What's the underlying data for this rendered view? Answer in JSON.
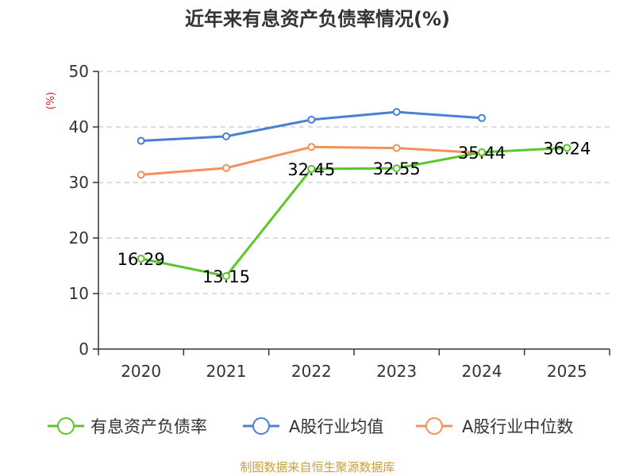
{
  "chart_data": {
    "type": "line",
    "title": "近年来有息资产负债率情况(%)",
    "ylabel": "(%)",
    "categories": [
      "2020",
      "2021",
      "2022",
      "2023",
      "2024",
      "2025"
    ],
    "ylim": [
      0,
      50
    ],
    "yticks": [
      0,
      10,
      20,
      30,
      40,
      50
    ],
    "grid": true,
    "legend_position": "bottom",
    "series": [
      {
        "name": "有息资产负债率",
        "color": "#5ac72a",
        "values": [
          16.29,
          13.15,
          32.45,
          32.55,
          35.44,
          36.24
        ],
        "labels": [
          "16.29",
          "13.15",
          "32.45",
          "32.55",
          "35.44",
          "36.24"
        ]
      },
      {
        "name": "A股行业均值",
        "color": "#4a7fd6",
        "values": [
          37.5,
          38.3,
          41.3,
          42.7,
          41.6,
          null
        ]
      },
      {
        "name": "A股行业中位数",
        "color": "#f4905a",
        "values": [
          31.4,
          32.6,
          36.4,
          36.2,
          35.3,
          null
        ]
      }
    ]
  },
  "footer": {
    "source": "制图数据来自恒生聚源数据库"
  }
}
